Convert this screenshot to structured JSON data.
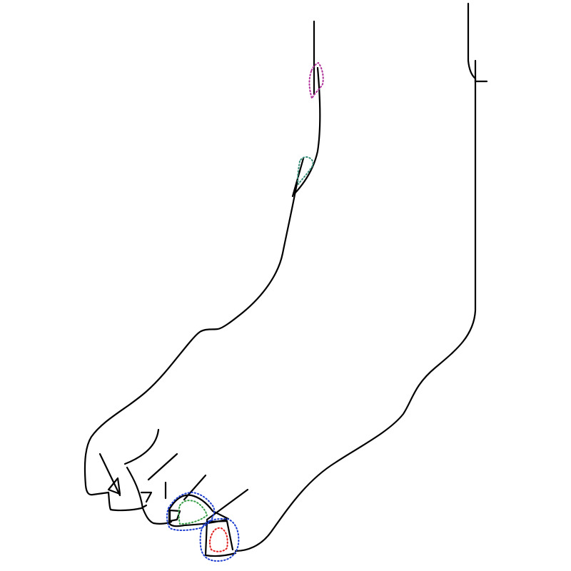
{
  "figure": {
    "subject": "foot-line-drawing",
    "colors": {
      "background": "#ffffff",
      "outline": "#000000",
      "annotation_magenta": "#b0339b",
      "annotation_green": "#3aa04a",
      "annotation_teal": "#3a8f7a",
      "annotation_blue": "#1f3fd0",
      "annotation_red": "#e0201f"
    },
    "annotations": [
      {
        "name": "magenta-mark-upper-leg",
        "color_key": "annotation_magenta"
      },
      {
        "name": "teal-mark-ankle-front",
        "color_key": "annotation_teal"
      },
      {
        "name": "green-mark-second-toe",
        "color_key": "annotation_green"
      },
      {
        "name": "blue-mark-toes",
        "color_key": "annotation_blue"
      },
      {
        "name": "red-mark-big-toe",
        "color_key": "annotation_red"
      }
    ]
  }
}
